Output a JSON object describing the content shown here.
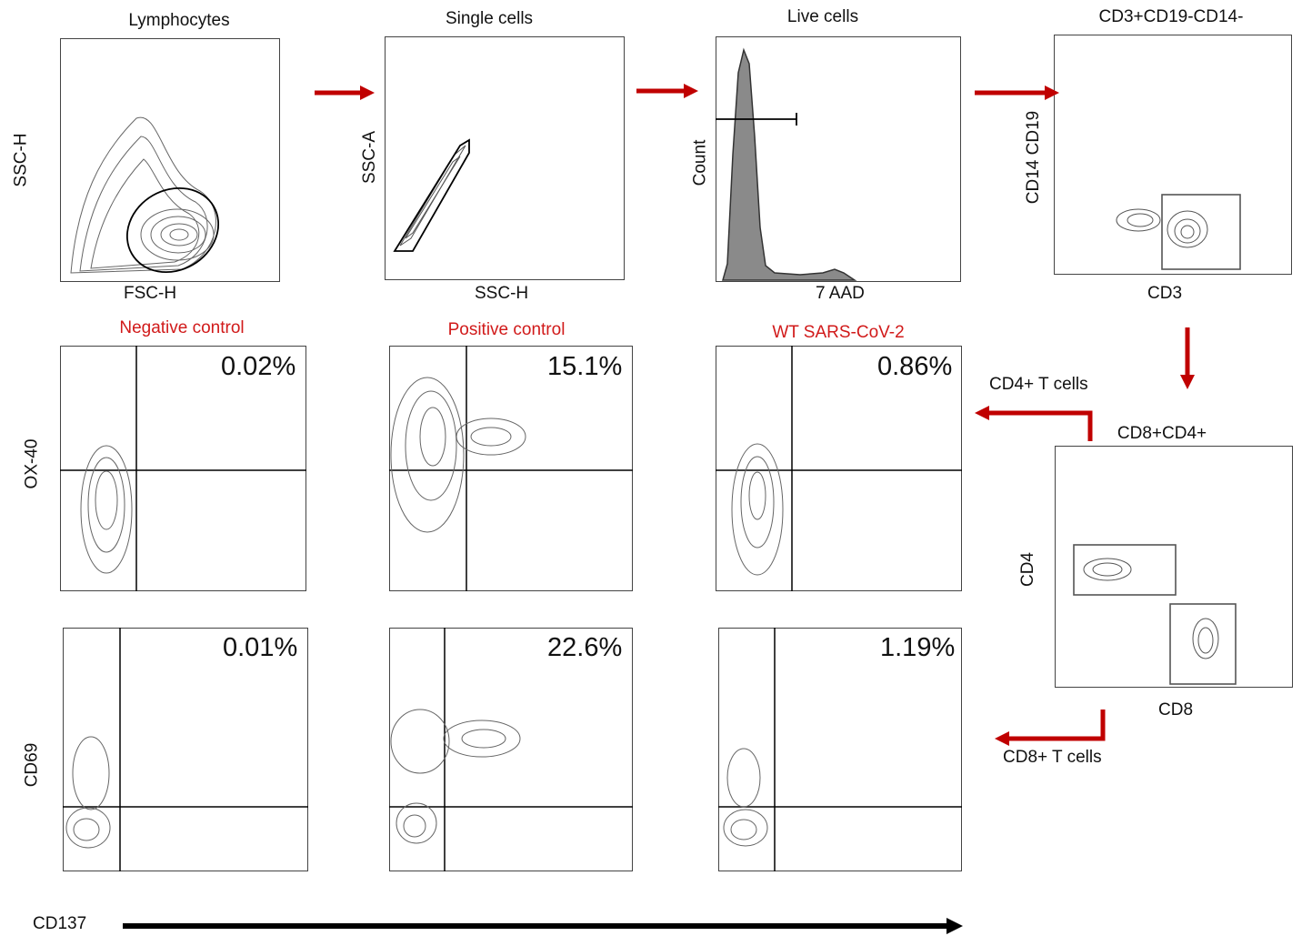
{
  "top_row": {
    "lymphocytes": {
      "title": "Lymphocytes",
      "xlabel": "FSC-H",
      "ylabel": "SSC-H"
    },
    "single_cells": {
      "title": "Single cells",
      "xlabel": "SSC-H",
      "ylabel": "SSC-A"
    },
    "live_cells": {
      "title": "Live cells",
      "xlabel": "7 AAD",
      "ylabel": "Count"
    },
    "cd3": {
      "title": "CD3+CD19-CD14-",
      "xlabel": "CD3",
      "ylabel": "CD14 CD19"
    }
  },
  "cd8cd4": {
    "title": "CD8+CD4+",
    "xlabel": "CD8",
    "ylabel": "CD4"
  },
  "flow_labels": {
    "cd4": "CD4+ T cells",
    "cd8": "CD8+ T cells"
  },
  "columns": [
    {
      "title": "Negative control",
      "ox40_pct": "0.02%",
      "cd69_pct": "0.01%"
    },
    {
      "title": "Positive control",
      "ox40_pct": "15.1%",
      "cd69_pct": "22.6%"
    },
    {
      "title": "WT SARS-CoV-2",
      "ox40_pct": "0.86%",
      "cd69_pct": "1.19%"
    }
  ],
  "row_labels": {
    "ox40": "OX-40",
    "cd69": "CD69"
  },
  "bottom_axis": {
    "label": "CD137"
  },
  "colors": {
    "arrow": "#c00000",
    "title_red": "#d11a1a",
    "axis": "#000000",
    "contour": "#555555"
  }
}
